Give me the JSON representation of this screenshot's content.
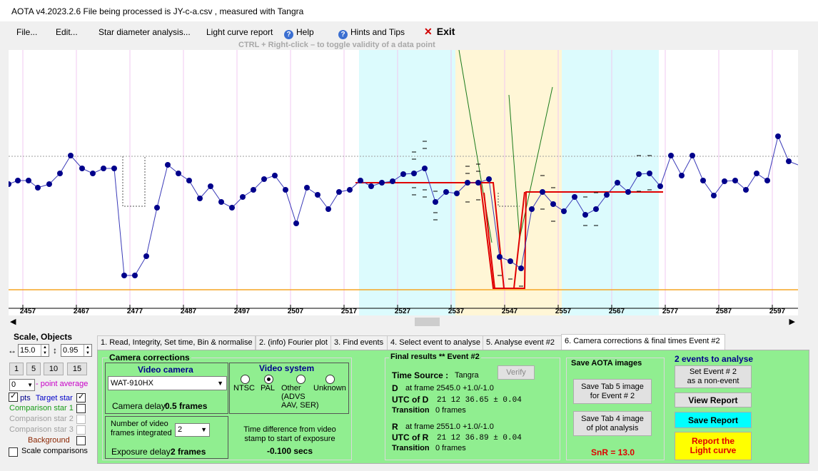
{
  "window": {
    "title": "AOTA v4.2023.2.6   File being processed is  JY-c-a.csv ,  measured with Tangra"
  },
  "menu": {
    "file": "File...",
    "edit": "Edit...",
    "star_diameter": "Star diameter analysis...",
    "light_curve_report": "Light curve report",
    "help": "Help",
    "hints": "Hints and Tips",
    "exit": "Exit"
  },
  "ctrl_hint": "CTRL + Right-click   –   to toggle validity of a data point",
  "plot": {
    "x_ticks": [
      "2457",
      "2467",
      "2477",
      "2487",
      "2497",
      "2507",
      "2517",
      "2527",
      "2537",
      "2547",
      "2557",
      "2567",
      "2577",
      "2587",
      "2597"
    ],
    "colors": {
      "baseline": "#9e9e9e",
      "orange_line": "#f5a623",
      "cyan_band": "#dcfbfd",
      "yellow_band": "#fff6d6",
      "red_model": "#e00000",
      "green_line": "#1a7a1a",
      "points": "#00008b"
    }
  },
  "scale": {
    "title": "Scale,  Objects",
    "value1": "15.0",
    "value2": "0.95",
    "buttons": [
      "1",
      "5",
      "10",
      "15"
    ],
    "avg_value": "0",
    "avg_label": "- point average"
  },
  "objects": {
    "pts": "pts",
    "target": "Target star",
    "comp1": "Comparison star 1",
    "comp2": "Comparison star 2",
    "comp3": "Comparison star 3",
    "background": "Background",
    "scale_comparisons": "Scale comparisons"
  },
  "tabs": [
    "1.  Read, Integrity, Set time, Bin & normalise",
    "2. (info)  Fourier plot",
    "3. Find events",
    "4. Select event to analyse",
    "5. Analyse event #2",
    "6. Camera corrections & final times Event #2"
  ],
  "camera": {
    "group_title": "Camera corrections",
    "video_camera_title": "Video camera",
    "camera_model": "WAT-910HX",
    "camera_delay_label": "Camera delay:",
    "camera_delay_value": "0.5 frames",
    "video_system_title": "Video system",
    "ntsc": "NTSC",
    "pal": "PAL",
    "other": "Other\n(ADVS\nAAV, SER)",
    "unknown": "Unknown",
    "frames_integrated_label": "Number of video frames integrated",
    "frames_integrated_value": "2",
    "exposure_delay_label": "Exposure delay:",
    "exposure_delay_value": "2 frames",
    "time_diff_label": "Time difference from video stamp to start of exposure",
    "time_diff_value": "-0.100 secs"
  },
  "final": {
    "title": "Final results  **  Event #2",
    "time_source_label": "Time Source :",
    "time_source_value": "Tangra",
    "verify": "Verify",
    "d_label": "D",
    "d_frame": "at frame 2545.0  +1.0/-1.0",
    "utc_d_label": "UTC of D",
    "utc_d_value": "21 12 36.65  ± 0.04",
    "transition_label": "Transition",
    "d_transition": "0 frames",
    "r_label": "R",
    "r_frame": "at frame 2551.0  +1.0/-1.0",
    "utc_r_label": "UTC of R",
    "utc_r_value": "21 12 36.89  ± 0.04",
    "r_transition": "0 frames"
  },
  "save": {
    "title": "Save AOTA images",
    "tab5": "Save Tab 5 image\nfor Event # 2",
    "tab4": "Save Tab 4 image\nof plot analysis",
    "snr": "SnR = 13.0"
  },
  "events": {
    "title": "2 events to analyse",
    "set_non_event": "Set Event # 2\nas a non-event",
    "view_report": "View Report",
    "save_report": "Save Report",
    "report_light_curve": "Report the\nLight curve"
  }
}
